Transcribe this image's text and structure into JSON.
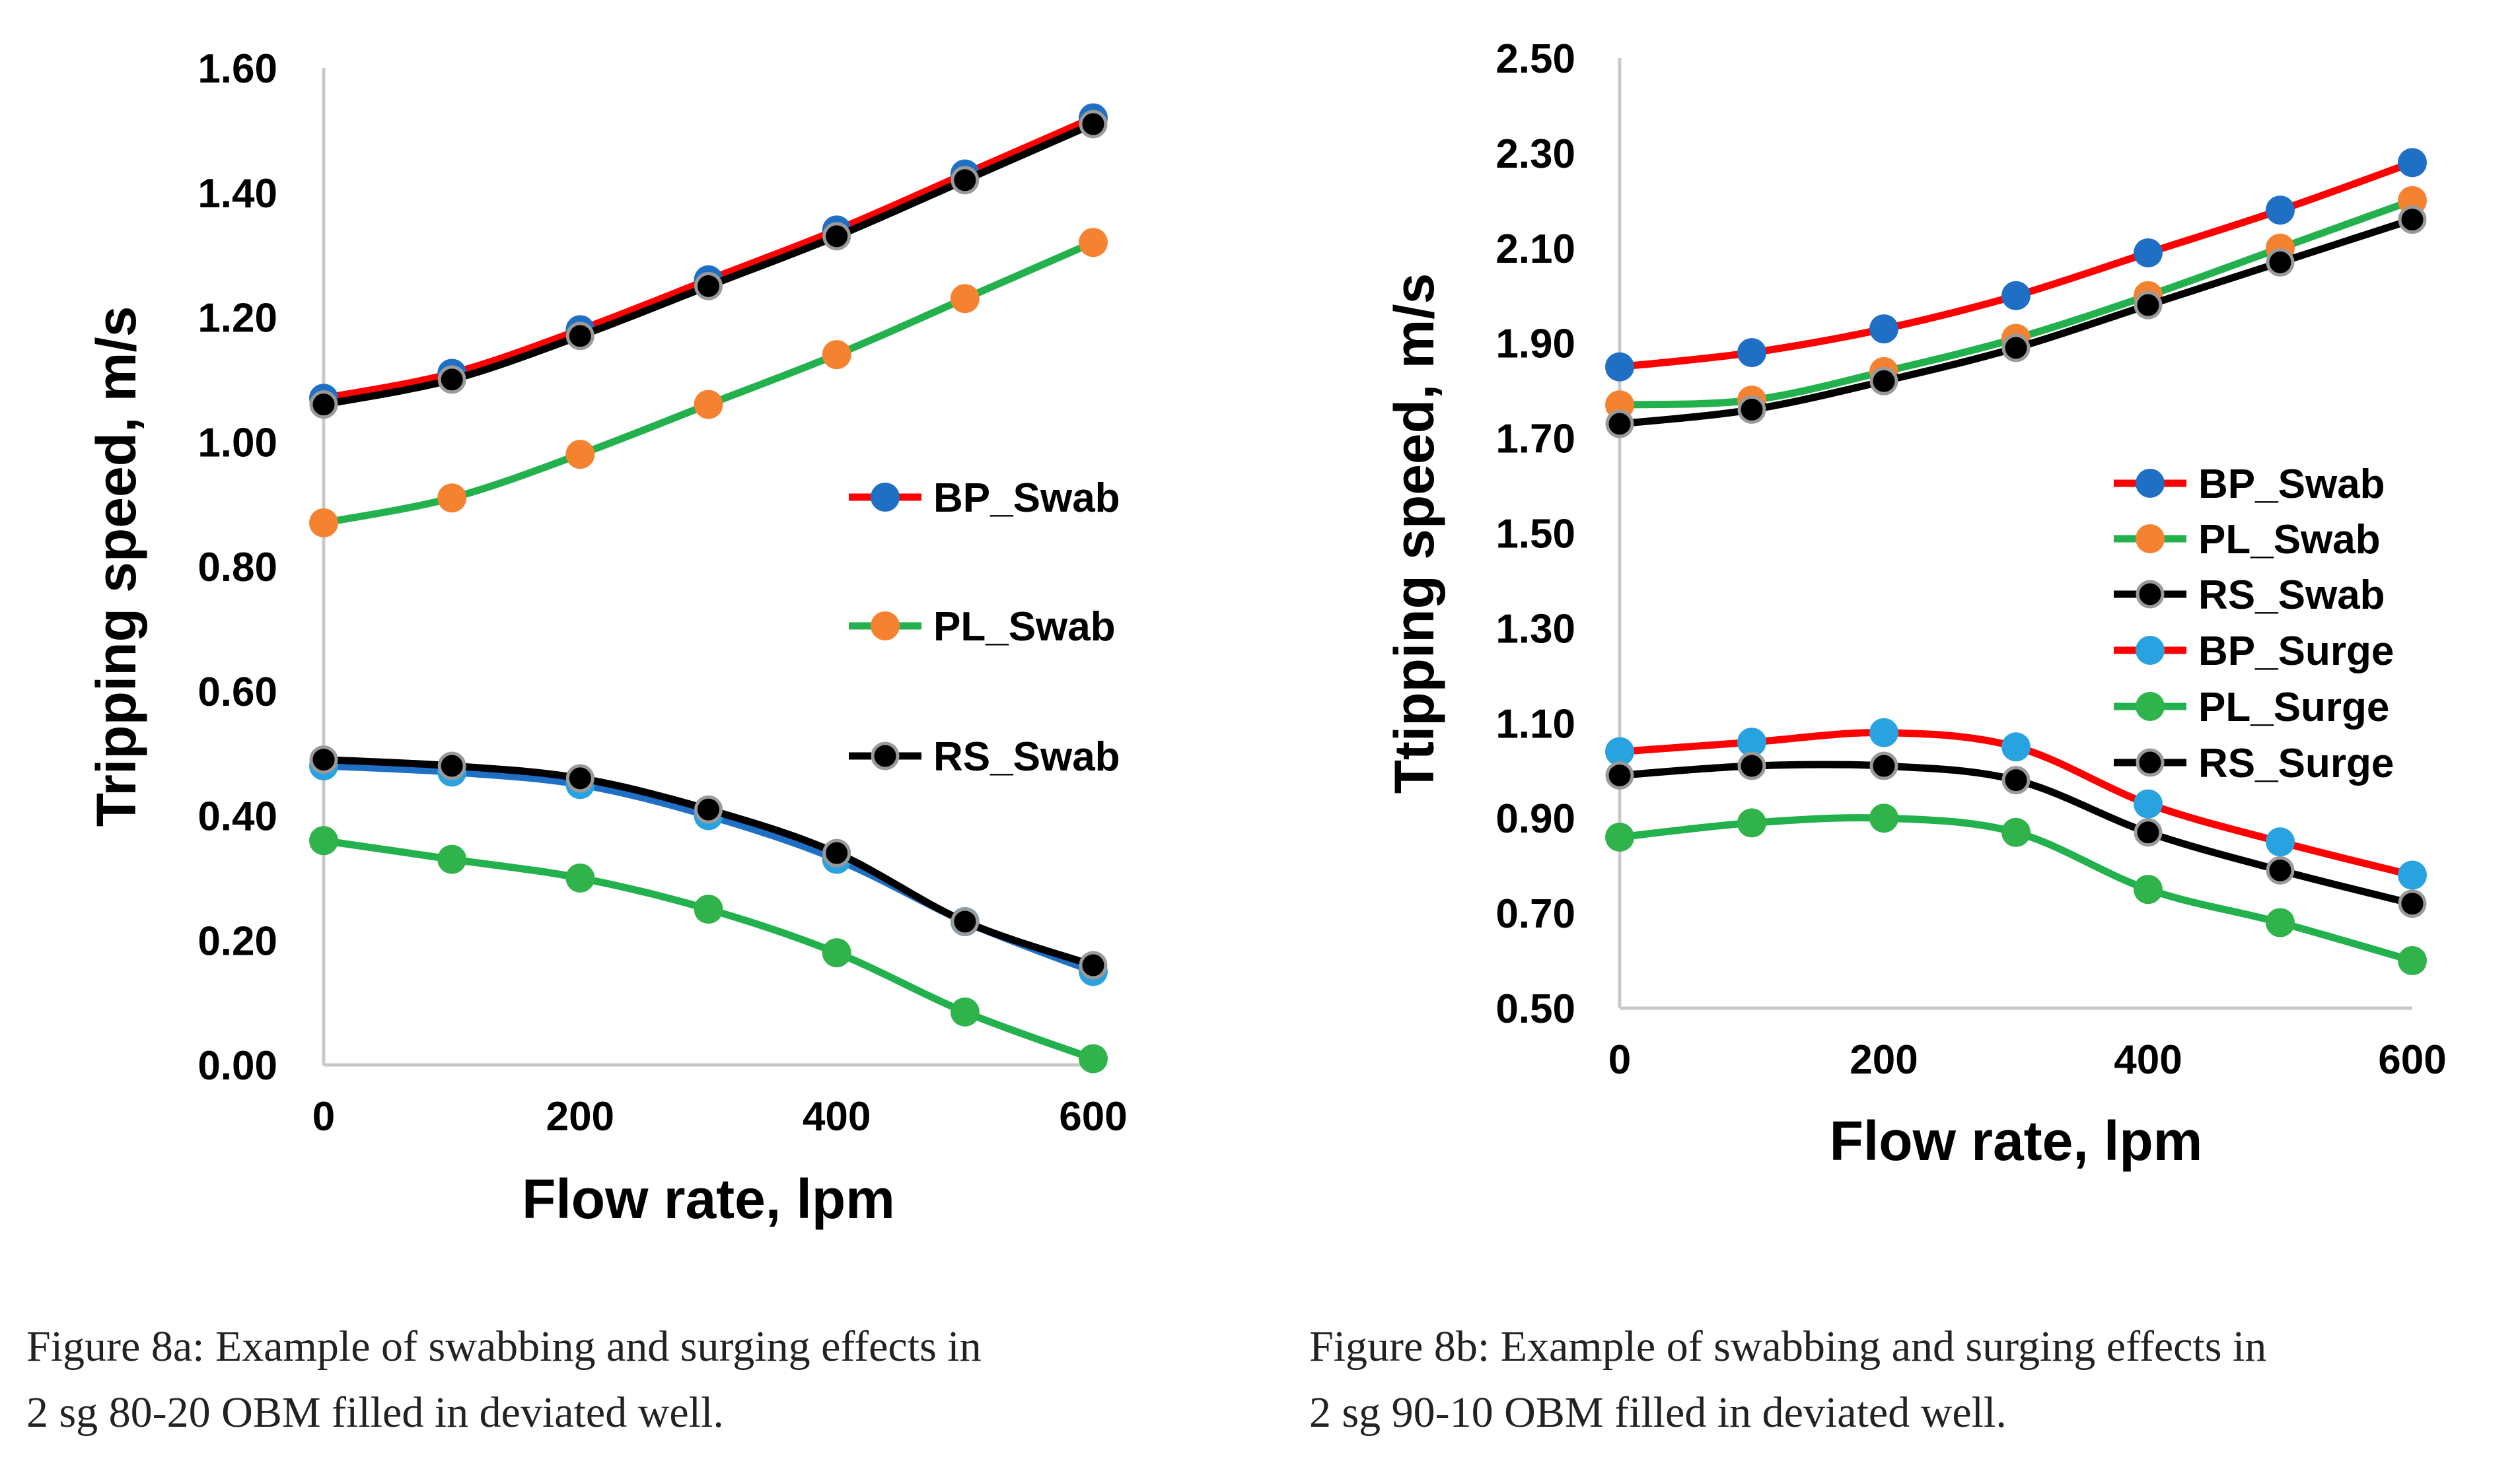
{
  "chart_data": [
    {
      "id": "fig8a",
      "type": "line",
      "title": "",
      "xlabel": "Flow rate, lpm",
      "ylabel": "Tripping speed, m/s",
      "xlim": [
        0,
        600
      ],
      "ylim": [
        0,
        1.6
      ],
      "xticks": [
        0,
        200,
        400,
        600
      ],
      "yticks": [
        0,
        0.2,
        0.4,
        0.6,
        0.8,
        1.0,
        1.2,
        1.4,
        1.6
      ],
      "xtick_labels": [
        "0",
        "200",
        "400",
        "600"
      ],
      "ytick_labels": [
        "0.00",
        "0.20",
        "0.40",
        "0.60",
        "0.80",
        "1.00",
        "1.20",
        "1.40",
        "1.60"
      ],
      "x": [
        0,
        100,
        200,
        300,
        400,
        500,
        600
      ],
      "grid": false,
      "legend": [
        "BP_Swab",
        "PL_Swab",
        "RS_Swab"
      ],
      "legend_position": "right-center",
      "series": [
        {
          "name": "BP_Swab",
          "line": "#ff0000",
          "marker": "#1f6fc5",
          "values": [
            1.07,
            1.11,
            1.18,
            1.26,
            1.34,
            1.43,
            1.52
          ]
        },
        {
          "name": "PL_Swab",
          "line": "#22b14c",
          "marker": "#f58231",
          "values": [
            0.87,
            0.91,
            0.98,
            1.06,
            1.14,
            1.23,
            1.32
          ]
        },
        {
          "name": "RS_Swab",
          "line": "#000000",
          "marker": "#000000",
          "values": [
            1.06,
            1.1,
            1.17,
            1.25,
            1.33,
            1.42,
            1.51
          ]
        },
        {
          "name": "BP_Surge",
          "line": "#1f6fc5",
          "marker": "#29a3e0",
          "values": [
            0.48,
            0.47,
            0.45,
            0.4,
            0.33,
            0.23,
            0.15
          ]
        },
        {
          "name": "PL_Surge",
          "line": "#22b14c",
          "marker": "#2fb34a",
          "values": [
            0.36,
            0.33,
            0.3,
            0.25,
            0.18,
            0.085,
            0.01
          ]
        },
        {
          "name": "RS_Surge",
          "line": "#000000",
          "marker": "#000000",
          "values": [
            0.49,
            0.48,
            0.46,
            0.41,
            0.34,
            0.23,
            0.16
          ]
        }
      ]
    },
    {
      "id": "fig8b",
      "type": "line",
      "title": "",
      "xlabel": "Flow rate, lpm",
      "ylabel": "Ttipping speed, m/s",
      "xlim": [
        0,
        600
      ],
      "ylim": [
        0.5,
        2.5
      ],
      "xticks": [
        0,
        200,
        400,
        600
      ],
      "yticks": [
        0.5,
        0.7,
        0.9,
        1.1,
        1.3,
        1.5,
        1.7,
        1.9,
        2.1,
        2.3,
        2.5
      ],
      "xtick_labels": [
        "0",
        "200",
        "400",
        "600"
      ],
      "ytick_labels": [
        "0.50",
        "0.70",
        "0.90",
        "1.10",
        "1.30",
        "1.50",
        "1.70",
        "1.90",
        "2.10",
        "2.30",
        "2.50"
      ],
      "x": [
        0,
        100,
        200,
        300,
        400,
        500,
        600
      ],
      "grid": false,
      "legend": [
        "BP_Swab",
        "PL_Swab",
        "RS_Swab",
        "BP_Surge",
        "PL_Surge",
        "RS_Surge"
      ],
      "legend_position": "right-center",
      "series": [
        {
          "name": "BP_Swab",
          "line": "#ff0000",
          "marker": "#1f6fc5",
          "values": [
            1.85,
            1.88,
            1.93,
            2.0,
            2.09,
            2.18,
            2.28
          ]
        },
        {
          "name": "PL_Swab",
          "line": "#22b14c",
          "marker": "#f58231",
          "values": [
            1.77,
            1.78,
            1.84,
            1.91,
            2.0,
            2.1,
            2.2
          ]
        },
        {
          "name": "RS_Swab",
          "line": "#000000",
          "marker": "#000000",
          "values": [
            1.73,
            1.76,
            1.82,
            1.89,
            1.98,
            2.07,
            2.16
          ]
        },
        {
          "name": "BP_Surge",
          "line": "#ff0000",
          "marker": "#29a3e0",
          "values": [
            1.04,
            1.06,
            1.08,
            1.05,
            0.93,
            0.85,
            0.78
          ]
        },
        {
          "name": "PL_Surge",
          "line": "#22b14c",
          "marker": "#2fb34a",
          "values": [
            0.86,
            0.89,
            0.9,
            0.87,
            0.75,
            0.68,
            0.6
          ]
        },
        {
          "name": "RS_Surge",
          "line": "#000000",
          "marker": "#000000",
          "values": [
            0.99,
            1.01,
            1.01,
            0.98,
            0.87,
            0.79,
            0.72
          ]
        }
      ]
    }
  ],
  "captions": {
    "fig8a_line1": "Figure 8a: Example of swabbing and surging effects in",
    "fig8a_line2": "2 sg 80-20 OBM filled in deviated well.",
    "fig8b_line1": "Figure 8b: Example of swabbing and surging effects in",
    "fig8b_line2": "2 sg 90-10 OBM filled in deviated well."
  }
}
